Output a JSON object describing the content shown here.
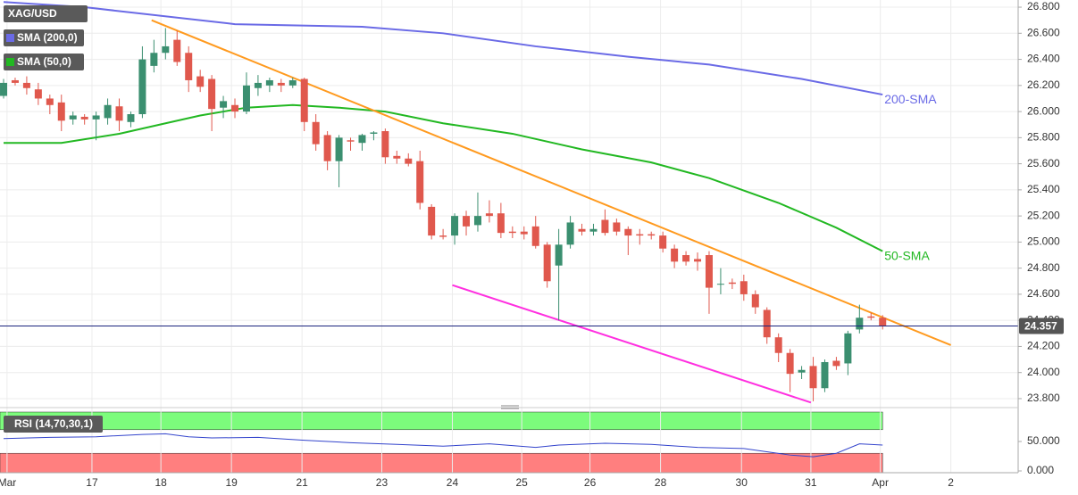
{
  "chart_data": {
    "type": "candlestick",
    "legend": [
      "XAG/USD",
      "SMA (200,0)",
      "SMA (50,0)"
    ],
    "up_color": "#3b8f70",
    "down_color": "#e0584d",
    "open": [
      26.12,
      26.24,
      26.22,
      26.17,
      26.1,
      26.07,
      25.94,
      25.96,
      25.94,
      25.95,
      26.04,
      25.92,
      25.98,
      26.35,
      26.45,
      26.55,
      26.45,
      26.27,
      26.25,
      26.03,
      26.05,
      26.0,
      26.18,
      26.2,
      26.22,
      26.2,
      26.25,
      25.92,
      25.82,
      25.62,
      25.78,
      25.76,
      25.83,
      25.85,
      25.66,
      25.64,
      25.62,
      25.27,
      25.05,
      25.05,
      25.2,
      25.13,
      25.22,
      25.22,
      25.08,
      25.08,
      25.12,
      24.98,
      24.82,
      24.98,
      25.1,
      25.08,
      25.17,
      25.15,
      25.1,
      25.06,
      25.06,
      25.05,
      24.95,
      24.9,
      24.87,
      24.9,
      24.68,
      24.69,
      24.7,
      24.6,
      24.48,
      24.27,
      24.15,
      24.0,
      24.05,
      23.88,
      24.09,
      24.07,
      24.33,
      24.43,
      24.42
    ],
    "high": [
      26.25,
      26.26,
      26.27,
      26.22,
      26.13,
      26.13,
      26.0,
      25.98,
      26.0,
      26.1,
      26.1,
      26.0,
      26.5,
      26.55,
      26.64,
      26.62,
      26.5,
      26.32,
      26.28,
      26.12,
      26.1,
      26.3,
      26.28,
      26.26,
      26.25,
      26.26,
      26.26,
      25.98,
      25.85,
      25.82,
      25.8,
      25.83,
      25.85,
      25.87,
      25.7,
      25.68,
      25.7,
      25.29,
      25.1,
      25.22,
      25.24,
      25.38,
      25.32,
      25.3,
      25.12,
      25.12,
      25.2,
      25.0,
      25.1,
      25.2,
      25.14,
      25.14,
      25.25,
      25.18,
      25.12,
      25.1,
      25.08,
      25.08,
      24.98,
      24.93,
      24.92,
      24.93,
      24.8,
      24.72,
      24.75,
      24.63,
      24.5,
      24.3,
      24.18,
      24.05,
      24.12,
      24.1,
      24.12,
      24.32,
      24.52,
      24.46,
      24.44
    ],
    "low": [
      26.1,
      26.2,
      26.13,
      26.05,
      25.98,
      25.85,
      25.9,
      25.9,
      25.78,
      25.9,
      25.85,
      25.88,
      25.95,
      26.3,
      26.4,
      26.35,
      26.15,
      26.15,
      25.85,
      25.95,
      25.95,
      25.98,
      26.12,
      26.15,
      26.15,
      26.18,
      25.85,
      25.7,
      25.55,
      25.42,
      25.7,
      25.7,
      25.78,
      25.6,
      25.6,
      25.58,
      25.25,
      25.02,
      25.02,
      24.98,
      25.05,
      25.08,
      25.15,
      25.03,
      25.03,
      25.02,
      24.95,
      24.65,
      24.4,
      24.95,
      25.05,
      25.05,
      25.05,
      25.05,
      24.9,
      24.98,
      25.02,
      24.92,
      24.8,
      24.82,
      24.78,
      24.45,
      24.6,
      24.64,
      24.55,
      24.45,
      24.22,
      24.08,
      23.85,
      23.95,
      23.78,
      23.85,
      24.02,
      23.98,
      24.3,
      24.4,
      24.33
    ],
    "close": [
      26.22,
      26.22,
      26.18,
      26.1,
      26.05,
      25.93,
      25.97,
      25.94,
      25.97,
      26.05,
      25.93,
      25.98,
      26.4,
      26.45,
      26.5,
      26.38,
      26.24,
      26.19,
      26.02,
      26.08,
      26.0,
      26.2,
      26.22,
      26.24,
      26.2,
      26.24,
      25.92,
      25.75,
      25.62,
      25.8,
      25.77,
      25.82,
      25.84,
      25.65,
      25.64,
      25.6,
      25.3,
      25.05,
      25.04,
      25.2,
      25.12,
      25.2,
      25.2,
      25.07,
      25.07,
      25.06,
      24.97,
      24.7,
      24.98,
      25.15,
      25.08,
      25.1,
      25.07,
      25.08,
      25.05,
      25.05,
      25.05,
      24.95,
      24.85,
      24.85,
      24.85,
      24.65,
      24.68,
      24.68,
      24.6,
      24.5,
      24.27,
      24.15,
      23.99,
      24.02,
      23.88,
      24.08,
      24.05,
      24.3,
      24.42,
      24.42,
      24.357
    ],
    "ylim": [
      23.745,
      26.855
    ],
    "yticks": [
      {
        "value": 23.8,
        "label": "23.800"
      },
      {
        "value": 24.0,
        "label": "24.000"
      },
      {
        "value": 24.2,
        "label": "24.200"
      },
      {
        "value": 24.4,
        "label": "24.400"
      },
      {
        "value": 24.6,
        "label": "24.600"
      },
      {
        "value": 24.8,
        "label": "24.800"
      },
      {
        "value": 25.0,
        "label": "25.000"
      },
      {
        "value": 25.2,
        "label": "25.200"
      },
      {
        "value": 25.4,
        "label": "25.400"
      },
      {
        "value": 25.6,
        "label": "25.600"
      },
      {
        "value": 25.8,
        "label": "25.800"
      },
      {
        "value": 26.0,
        "label": "26.000"
      },
      {
        "value": 26.2,
        "label": "26.200"
      },
      {
        "value": 26.4,
        "label": "26.400"
      },
      {
        "value": 26.6,
        "label": "26.600"
      },
      {
        "value": 26.8,
        "label": "26.800"
      }
    ],
    "xlim": [
      -0.31,
      87.72
    ],
    "xticks": [
      {
        "value": 0.3,
        "label": "Mar"
      },
      {
        "value": 7.64,
        "label": "17"
      },
      {
        "value": 13.6,
        "label": "18"
      },
      {
        "value": 19.7,
        "label": "19"
      },
      {
        "value": 25.8,
        "label": "21"
      },
      {
        "value": 32.7,
        "label": "23"
      },
      {
        "value": 38.8,
        "label": "24"
      },
      {
        "value": 44.8,
        "label": "25"
      },
      {
        "value": 50.7,
        "label": "26"
      },
      {
        "value": 56.8,
        "label": "28"
      },
      {
        "value": 63.8,
        "label": "30"
      },
      {
        "value": 69.8,
        "label": "31"
      },
      {
        "value": 75.8,
        "label": "Apr"
      },
      {
        "value": 81.9,
        "label": "2"
      }
    ],
    "sma": [
      {
        "name": "200-SMA",
        "color": "#6a6ae6",
        "x": [
          0,
          7,
          20,
          31,
          38,
          46,
          54,
          61,
          69,
          76
        ],
        "values": [
          26.84,
          26.8,
          26.67,
          26.65,
          26.6,
          26.5,
          26.42,
          26.36,
          26.25,
          26.13
        ]
      },
      {
        "name": "50-SMA",
        "color": "#22b822",
        "x": [
          0,
          5,
          10,
          14,
          17,
          21,
          25,
          29,
          33,
          38,
          44,
          50,
          56,
          61,
          67,
          72,
          76
        ],
        "values": [
          25.76,
          25.76,
          25.83,
          25.91,
          25.97,
          26.03,
          26.05,
          26.03,
          26.0,
          25.91,
          25.83,
          25.71,
          25.61,
          25.49,
          25.3,
          25.11,
          24.93
        ]
      }
    ],
    "trendlines": [
      {
        "color": "#ff9a1f",
        "x": [
          12.8,
          81.9
        ],
        "values": [
          26.7,
          24.21
        ]
      },
      {
        "color": "#ff2fe0",
        "x": [
          38.8,
          69.8
        ],
        "values": [
          24.67,
          23.77
        ]
      }
    ],
    "last_price": 24.357,
    "rsi": {
      "type": "line",
      "label": "RSI (14,70,30,1)",
      "color": "#3344cc",
      "overbought": 70,
      "oversold": 30,
      "ylim": [
        -3,
        103
      ],
      "yticks": [
        {
          "value": 0,
          "label": "0.000"
        },
        {
          "value": 50,
          "label": "50.000"
        }
      ],
      "x": [
        0,
        4,
        8,
        12,
        14,
        16,
        18,
        22,
        26,
        30,
        34,
        38,
        42,
        46,
        48,
        52,
        56,
        60,
        64,
        68,
        70,
        72,
        74,
        76
      ],
      "values": [
        55,
        57,
        58,
        62,
        63,
        58,
        56,
        57,
        52,
        48,
        45,
        42,
        46,
        40,
        44,
        47,
        45,
        40,
        38,
        27,
        24,
        30,
        46,
        44
      ]
    }
  }
}
